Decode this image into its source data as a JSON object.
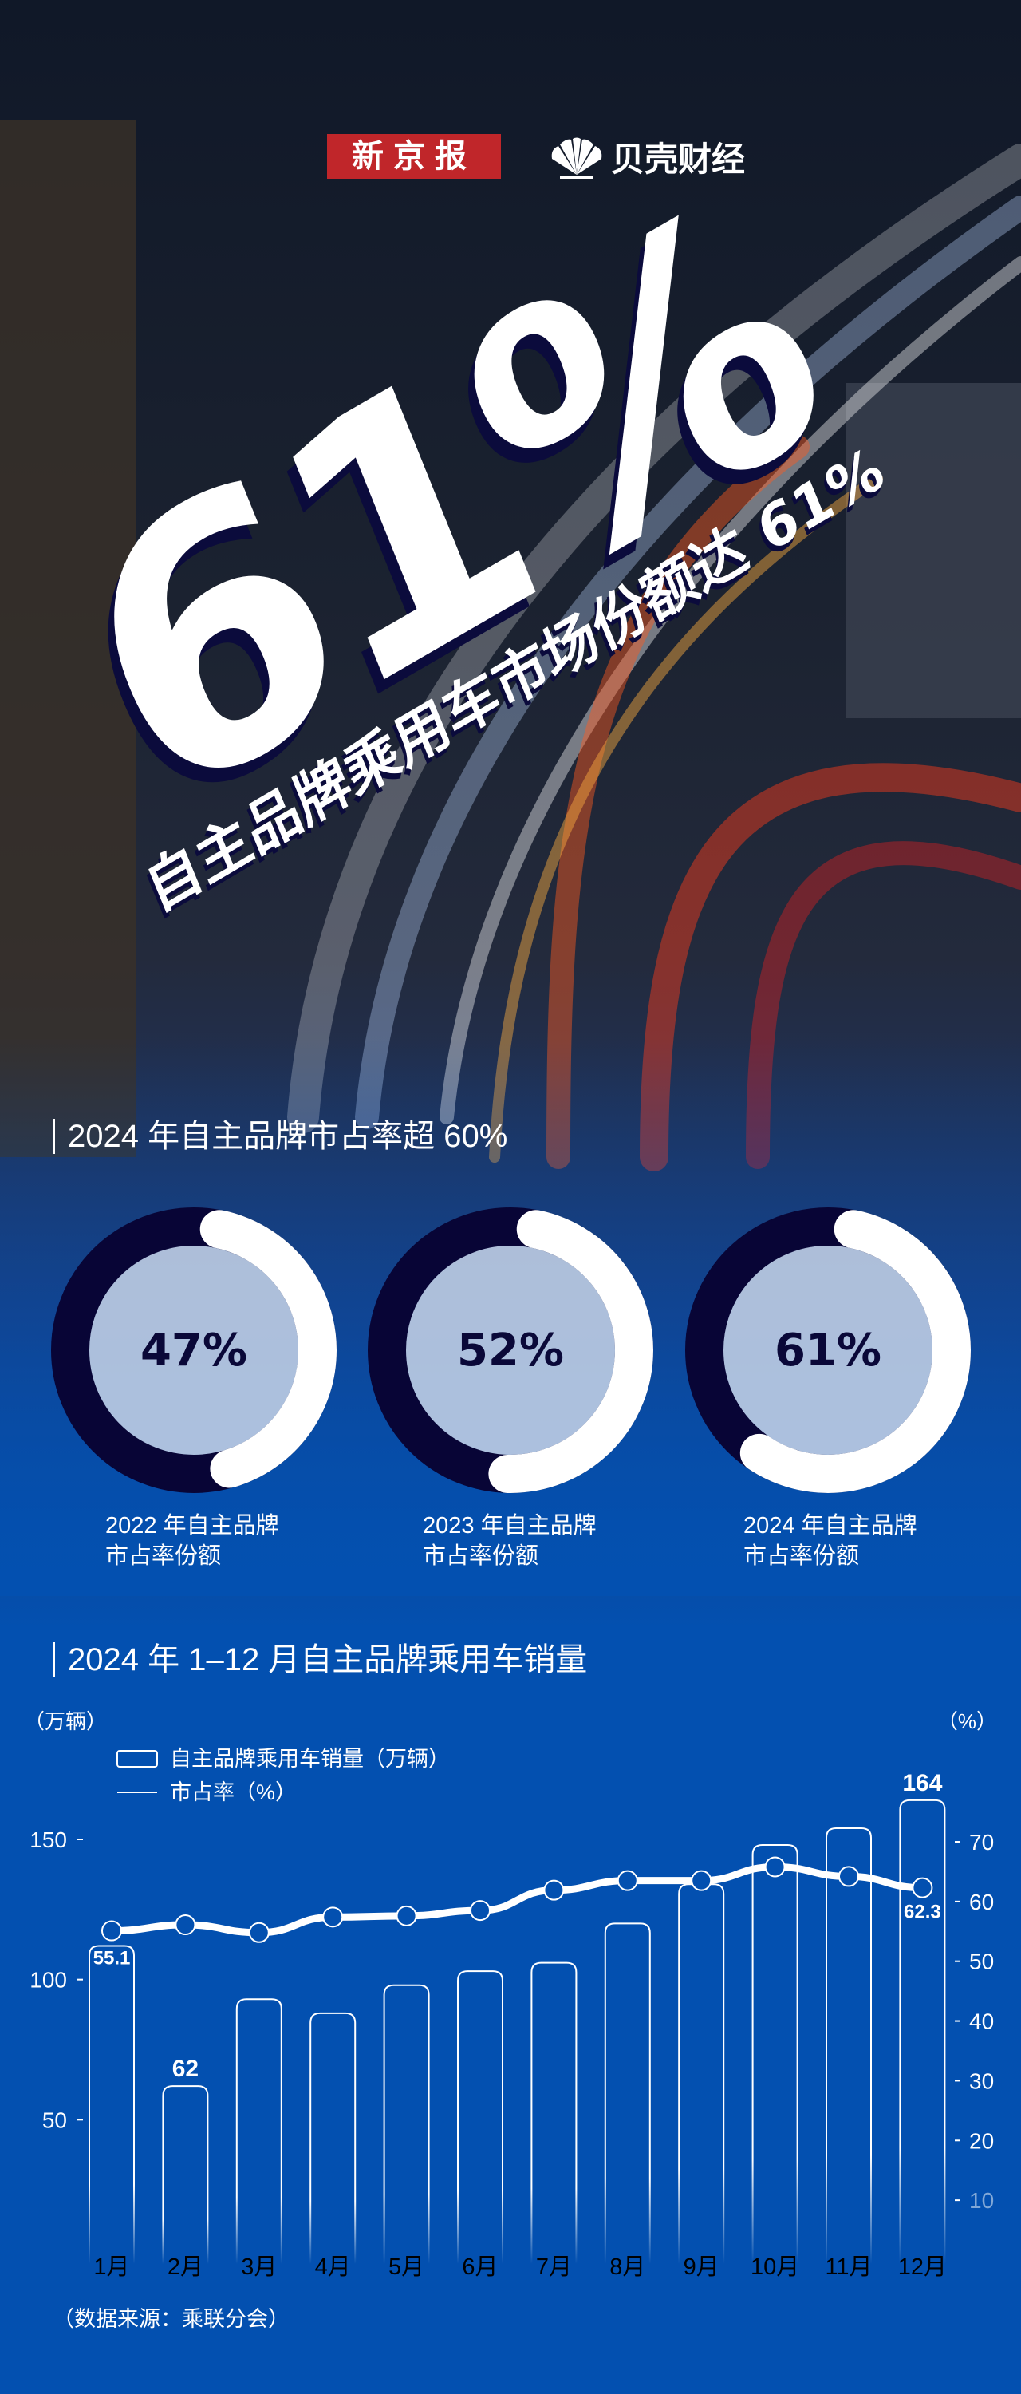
{
  "header": {
    "logo_left": "新京报",
    "logo_right": "贝壳财经"
  },
  "hero": {
    "big_number": "61%",
    "subtitle": "自主品牌乘用车市场份额达 61%"
  },
  "section1": {
    "title": "2024 年自主品牌市占率超 60%",
    "donuts": [
      {
        "value": 47,
        "label": "47%",
        "caption_line1": "2022 年自主品牌",
        "caption_line2": "市占率份额"
      },
      {
        "value": 52,
        "label": "52%",
        "caption_line1": "2023 年自主品牌",
        "caption_line2": "市占率份额"
      },
      {
        "value": 61,
        "label": "61%",
        "caption_line1": "2024 年自主品牌",
        "caption_line2": "市占率份额"
      }
    ],
    "colors": {
      "filled": "#ffffff",
      "remainder": "#080536",
      "center": "#c9d5e8"
    }
  },
  "section2": {
    "title": "2024 年 1–12 月自主品牌乘用车销量",
    "source": "（数据来源：乘联分会）"
  },
  "chart_data": {
    "type": "bar+line",
    "categories": [
      "1月",
      "2月",
      "3月",
      "4月",
      "5月",
      "6月",
      "7月",
      "8月",
      "9月",
      "10月",
      "11月",
      "12月"
    ],
    "series": [
      {
        "name": "自主品牌乘用车销量（万辆）",
        "type": "bar",
        "axis": "left",
        "values": [
          112,
          62,
          93,
          88,
          98,
          103,
          106,
          120,
          134,
          148,
          154,
          164
        ]
      },
      {
        "name": "市占率（%）",
        "type": "line",
        "axis": "right",
        "values": [
          55.1,
          56.1,
          54.8,
          57.4,
          57.6,
          58.5,
          61.9,
          63.5,
          63.5,
          65.8,
          64.2,
          62.3
        ]
      }
    ],
    "data_labels": [
      {
        "series": 0,
        "index": 1,
        "text": "62"
      },
      {
        "series": 0,
        "index": 11,
        "text": "164"
      },
      {
        "series": 1,
        "index": 0,
        "text": "55.1"
      },
      {
        "series": 1,
        "index": 11,
        "text": "62.3"
      }
    ],
    "left_axis": {
      "label": "（万辆）",
      "ticks": [
        "50",
        "100",
        "150"
      ],
      "range": [
        0,
        175
      ]
    },
    "right_axis": {
      "label": "（%）",
      "ticks": [
        "10",
        "20",
        "30",
        "40",
        "50",
        "60",
        "70"
      ],
      "range": [
        0,
        75
      ]
    },
    "legend": {
      "position": "top-left"
    },
    "grid": false,
    "colors": {
      "bar_stroke": "#ffffff",
      "line": "#ffffff",
      "background": "#0350b0"
    }
  }
}
